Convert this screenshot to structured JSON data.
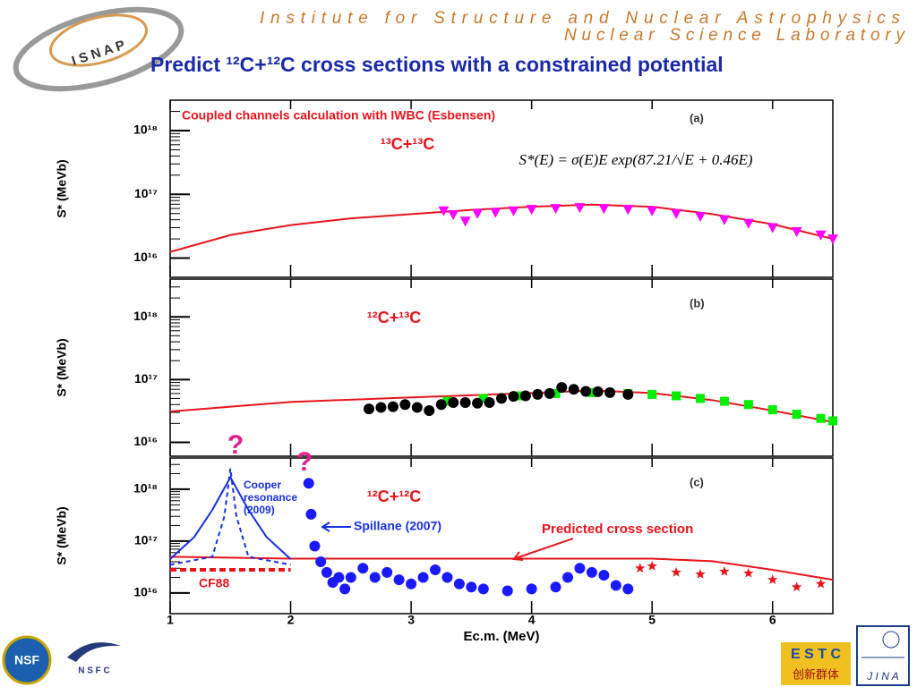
{
  "header": {
    "institute": "Institute for Structure and Nuclear Astrophysics",
    "lab": "Nuclear Science Laboratory",
    "title": "Predict ¹²C+¹²C cross sections with a constrained potential"
  },
  "logos": {
    "isnap": "I S N A P",
    "nsf": "NSF",
    "nsfc": "N S F C",
    "estc": "E S T C",
    "estc_caption": "创新群体",
    "jina": "J I N A"
  },
  "chart_data": [
    {
      "type": "scatter",
      "log": true,
      "y_label": "S* (MeVb)",
      "xlim": [
        1,
        6.5
      ],
      "xticks": [
        1,
        2,
        3,
        4,
        5,
        6
      ],
      "ylim": [
        5000000000000000.0,
        3e+18
      ],
      "yticks": [
        {
          "value": 1e+16,
          "label": "10¹⁶"
        },
        {
          "value": 1e+17,
          "label": "10¹⁷"
        },
        {
          "value": 1e+18,
          "label": "10¹⁸"
        }
      ],
      "annotations": [
        {
          "text": "Coupled channels calculation with IWBC (Esbensen)"
        },
        {
          "text": "(a)"
        },
        {
          "text": "¹³C+¹³C"
        },
        {
          "text": "S*(E) = σ(E)E exp(87.21/√E + 0.46E)"
        }
      ],
      "series": [
        {
          "style": "line",
          "color": "#e8141c",
          "x": [
            1,
            1.5,
            2,
            2.5,
            3,
            3.5,
            4,
            4.5,
            5,
            5.5,
            6,
            6.5
          ],
          "values": [
            1.25e+16,
            2.3e+16,
            3.3e+16,
            4.2e+16,
            4.9e+16,
            5.7e+16,
            6.4e+16,
            6.9e+16,
            6.4e+16,
            4.9e+16,
            3.4e+16,
            2e+16
          ]
        },
        {
          "style": "points",
          "marker": "triangle",
          "color": "#ff00ff",
          "x": [
            3.27,
            3.35,
            3.45,
            3.55,
            3.7,
            3.85,
            4.0,
            4.2,
            4.4,
            4.6,
            4.8,
            5.0,
            5.2,
            5.4,
            5.6,
            5.8,
            6.0,
            6.2,
            6.4,
            6.5
          ],
          "values": [
            5.5e+16,
            4.8e+16,
            3.8e+16,
            5e+16,
            5.2e+16,
            5.5e+16,
            5.8e+16,
            6e+16,
            6.2e+16,
            6e+16,
            5.8e+16,
            5.5e+16,
            5e+16,
            4.5e+16,
            4e+16,
            3.5e+16,
            3e+16,
            2.6e+16,
            2.3e+16,
            2e+16
          ]
        }
      ]
    },
    {
      "type": "scatter",
      "log": true,
      "y_label": "S* (MeVb)",
      "xlim": [
        1,
        6.5
      ],
      "xticks": [
        1,
        2,
        3,
        4,
        5,
        6
      ],
      "ylim": [
        6000000000000000.0,
        4e+18
      ],
      "yticks": [
        {
          "value": 1e+16,
          "label": "10¹⁶"
        },
        {
          "value": 1e+17,
          "label": "10¹⁷"
        },
        {
          "value": 1e+18,
          "label": "10¹⁸"
        }
      ],
      "annotations": [
        {
          "text": "(b)"
        },
        {
          "text": "¹²C+¹³C"
        }
      ],
      "series": [
        {
          "style": "line",
          "color": "#e8141c",
          "x": [
            1,
            2,
            3,
            4,
            4.5,
            5,
            5.5,
            6,
            6.5
          ],
          "values": [
            3.1e+16,
            4.4e+16,
            5.2e+16,
            6.1e+16,
            6.7e+16,
            6.1e+16,
            4.7e+16,
            3.2e+16,
            2.1e+16
          ]
        },
        {
          "style": "points",
          "marker": "square",
          "color": "#00ee00",
          "x": [
            3.3,
            3.6,
            3.9,
            4.2,
            4.5,
            4.8,
            5.0,
            5.2,
            5.4,
            5.6,
            5.8,
            6.0,
            6.2,
            6.4,
            6.5
          ],
          "values": [
            4.5e+16,
            5e+16,
            5.5e+16,
            6e+16,
            6.2e+16,
            6e+16,
            5.8e+16,
            5.5e+16,
            5e+16,
            4.5e+16,
            4e+16,
            3.3e+16,
            2.8e+16,
            2.4e+16,
            2.2e+16
          ]
        },
        {
          "style": "points",
          "marker": "circle",
          "color": "#000000",
          "x": [
            2.65,
            2.75,
            2.85,
            2.95,
            3.05,
            3.15,
            3.25,
            3.35,
            3.45,
            3.55,
            3.65,
            3.75,
            3.85,
            3.95,
            4.05,
            4.15,
            4.25,
            4.35,
            4.45,
            4.55,
            4.65,
            4.8
          ],
          "values": [
            3.4e+16,
            3.6e+16,
            3.7e+16,
            4e+16,
            3.6e+16,
            3.2e+16,
            4e+16,
            4.3e+16,
            4.3e+16,
            4.2e+16,
            4.3e+16,
            5e+16,
            5.4e+16,
            5.5e+16,
            5.8e+16,
            6e+16,
            7.5e+16,
            7e+16,
            6.5e+16,
            6.4e+16,
            6.2e+16,
            5.8e+16
          ]
        }
      ]
    },
    {
      "type": "scatter",
      "log": true,
      "y_label": "S* (MeVb)",
      "x_label": "Ec.m. (MeV)",
      "xlim": [
        1,
        6.5
      ],
      "xticks": [
        1,
        2,
        3,
        4,
        5,
        6
      ],
      "ylim": [
        4000000000000000.0,
        4e+18
      ],
      "yticks": [
        {
          "value": 1e+16,
          "label": "10¹⁶"
        },
        {
          "value": 1e+17,
          "label": "10¹⁷"
        },
        {
          "value": 1e+18,
          "label": "10¹⁸"
        }
      ],
      "annotations": [
        {
          "text": "?"
        },
        {
          "text": "?"
        },
        {
          "lines": [
            "Cooper",
            "resonance",
            "(2009)"
          ]
        },
        {
          "text": "Spillane (2007)"
        },
        {
          "text": "Predicted cross section"
        },
        {
          "text": "CF88"
        },
        {
          "text": "(c)"
        },
        {
          "text": "¹²C+¹²C"
        }
      ],
      "series": [
        {
          "style": "line",
          "color": "#e8141c",
          "x": [
            1,
            2,
            3,
            4,
            5,
            5.5,
            6,
            6.5
          ],
          "values": [
            5e+16,
            4.6e+16,
            4.6e+16,
            4.6e+16,
            4.6e+16,
            4.1e+16,
            2.8e+16,
            1.8e+16
          ]
        },
        {
          "style": "line",
          "color": "#1530e0",
          "x": [
            1,
            1.2,
            1.35,
            1.5,
            1.65,
            1.8,
            2.0
          ],
          "values": [
            4.5e+16,
            1.2e+17,
            4e+17,
            1.7e+18,
            4e+17,
            1.2e+17,
            4.5e+16
          ]
        },
        {
          "style": "dashed",
          "color": "#1530e0",
          "x": [
            1,
            1.35,
            1.45,
            1.5,
            1.55,
            1.65,
            2.0
          ],
          "values": [
            3.5e+16,
            5e+16,
            3e+17,
            2.5e+18,
            3e+17,
            5e+16,
            3.5e+16
          ]
        },
        {
          "style": "thickdash",
          "color": "#e8141c",
          "x": [
            1,
            2
          ],
          "values": [
            2.8e+16,
            2.8e+16
          ]
        },
        {
          "style": "points",
          "marker": "star",
          "color": "#e8141c",
          "x": [
            4.9,
            5.0,
            5.2,
            5.4,
            5.6,
            5.8,
            6.0,
            6.2,
            6.4
          ],
          "values": [
            3e+16,
            3.3e+16,
            2.5e+16,
            2.3e+16,
            2.6e+16,
            2.4e+16,
            1.8e+16,
            1.3e+16,
            1.5e+16
          ]
        },
        {
          "style": "points",
          "marker": "circle",
          "color": "#1a1aff",
          "x": [
            2.15,
            2.17,
            2.2,
            2.25,
            2.3,
            2.35,
            2.4,
            2.45,
            2.5,
            2.6,
            2.7,
            2.8,
            2.9,
            3.0,
            3.1,
            3.2,
            3.3,
            3.4,
            3.5,
            3.6,
            3.8,
            4.0,
            4.2,
            4.3,
            4.4,
            4.5,
            4.6,
            4.7,
            4.8
          ],
          "values": [
            1.3e+18,
            3.3e+17,
            8e+16,
            4e+16,
            2.5e+16,
            1.6e+16,
            2e+16,
            1.2e+16,
            2e+16,
            3e+16,
            2e+16,
            2.5e+16,
            1.8e+16,
            1.5e+16,
            2e+16,
            2.8e+16,
            2e+16,
            1.5e+16,
            1.3e+16,
            1.2e+16,
            1.1e+16,
            1.2e+16,
            1.3e+16,
            2e+16,
            3e+16,
            2.5e+16,
            2.2e+16,
            1.4e+16,
            1.2e+16
          ]
        }
      ]
    }
  ]
}
